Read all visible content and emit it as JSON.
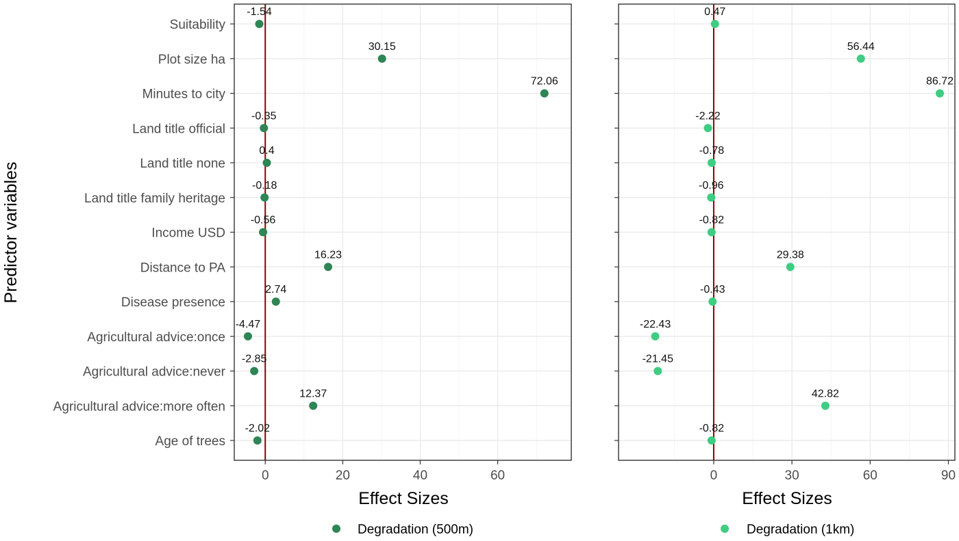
{
  "chart_data": {
    "type": "scatter",
    "ylabel": "Predictor variables",
    "categories": [
      "Suitability",
      "Plot size ha",
      "Minutes to city",
      "Land title official",
      "Land title none",
      "Land title family heritage",
      "Income USD",
      "Distance to PA",
      "Disease presence",
      "Agricultural advice:once",
      "Agricultural advice:never",
      "Agricultural advice:more often",
      "Age of trees"
    ],
    "panels": [
      {
        "xlabel": "Effect Sizes",
        "xlim": [
          -8,
          79
        ],
        "xticks": [
          0,
          20,
          40,
          60
        ],
        "reference_line": 0,
        "series": {
          "name": "Degradation (500m)",
          "color": "#2e8555",
          "values": [
            -1.54,
            30.15,
            72.06,
            -0.35,
            0.4,
            -0.18,
            -0.56,
            16.23,
            2.74,
            -4.47,
            -2.85,
            12.37,
            -2.02
          ],
          "labels": [
            "-1.54",
            "30.15",
            "72.06",
            "-0.35",
            "0.4",
            "-0.18",
            "-0.56",
            "16.23",
            "2.74",
            "-4.47",
            "-2.85",
            "12.37",
            "-2.02"
          ]
        }
      },
      {
        "xlabel": "Effect Sizes",
        "xlim": [
          -36.5,
          92.5
        ],
        "xticks": [
          0,
          30,
          60,
          90
        ],
        "reference_line": 0,
        "series": {
          "name": "Degradation (1km)",
          "color": "#3ecd82",
          "values": [
            0.47,
            56.44,
            86.72,
            -2.22,
            -0.78,
            -0.96,
            -0.82,
            29.38,
            -0.43,
            -22.43,
            -21.45,
            42.82,
            -0.82
          ],
          "labels": [
            "0.47",
            "56.44",
            "86.72",
            "-2.22",
            "-0.78",
            "-0.96",
            "-0.82",
            "29.38",
            "-0.43",
            "-22.43",
            "-21.45",
            "42.82",
            "-0.82"
          ]
        }
      }
    ],
    "grid": true,
    "legend_position": "bottom",
    "reference_line_color": "#8b0000"
  }
}
